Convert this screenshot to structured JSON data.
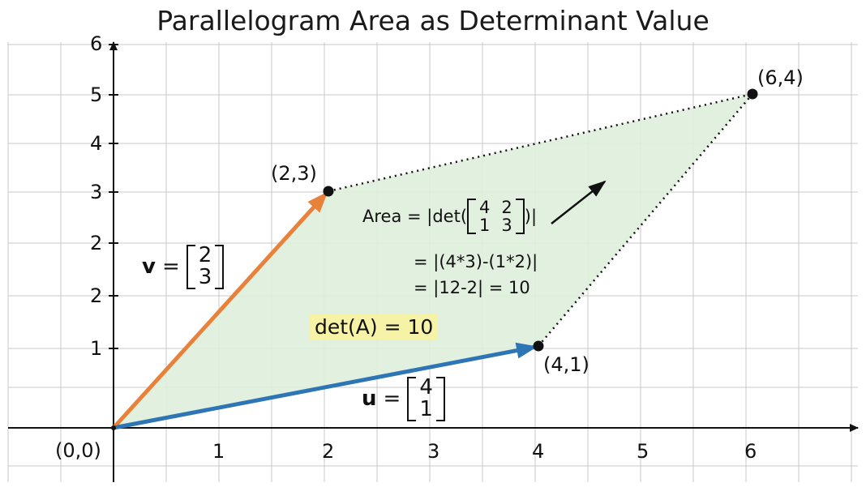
{
  "title": "Parallelogram Area as Determinant Value",
  "x_ticks": [
    "1",
    "2",
    "3",
    "4",
    "5",
    "6"
  ],
  "y_ticks": [
    "1",
    "2",
    "2",
    "3",
    "4",
    "5",
    "6"
  ],
  "points": {
    "origin": "(0,0)",
    "v": "(2,3)",
    "u": "(4,1)",
    "sum": "(6,4)"
  },
  "vector_v": {
    "symbol": "v",
    "equals": "=",
    "entries": [
      "2",
      "3"
    ],
    "color": "#e8823a"
  },
  "vector_u": {
    "symbol": "u",
    "equals": "=",
    "entries": [
      "4",
      "1"
    ],
    "color": "#2e75b6"
  },
  "area": {
    "prefix": "Area = |det(",
    "matrix": [
      [
        "4",
        "2"
      ],
      [
        "1",
        "3"
      ]
    ],
    "suffix": ")|",
    "line2": "= |(4*3)-(1*2)|",
    "line3": "= |12-2| = 10"
  },
  "det_label": "det(A) = 10",
  "colors": {
    "fill": "#dff0dc",
    "grid": "#c8c8c8",
    "highlight": "#f6f3a7",
    "axis": "#111111"
  },
  "chart_data": {
    "type": "scatter",
    "title": "Parallelogram Area as Determinant Value",
    "points": [
      {
        "label": "(0,0)",
        "x": 0,
        "y": 0
      },
      {
        "label": "(2,3)",
        "x": 2,
        "y": 3
      },
      {
        "label": "(4,1)",
        "x": 4,
        "y": 1
      },
      {
        "label": "(6,4)",
        "x": 6,
        "y": 4
      }
    ],
    "vectors": [
      {
        "name": "v",
        "from": [
          0,
          0
        ],
        "to": [
          2,
          3
        ]
      },
      {
        "name": "u",
        "from": [
          0,
          0
        ],
        "to": [
          4,
          1
        ]
      }
    ],
    "determinant": 10,
    "grid": true
  }
}
